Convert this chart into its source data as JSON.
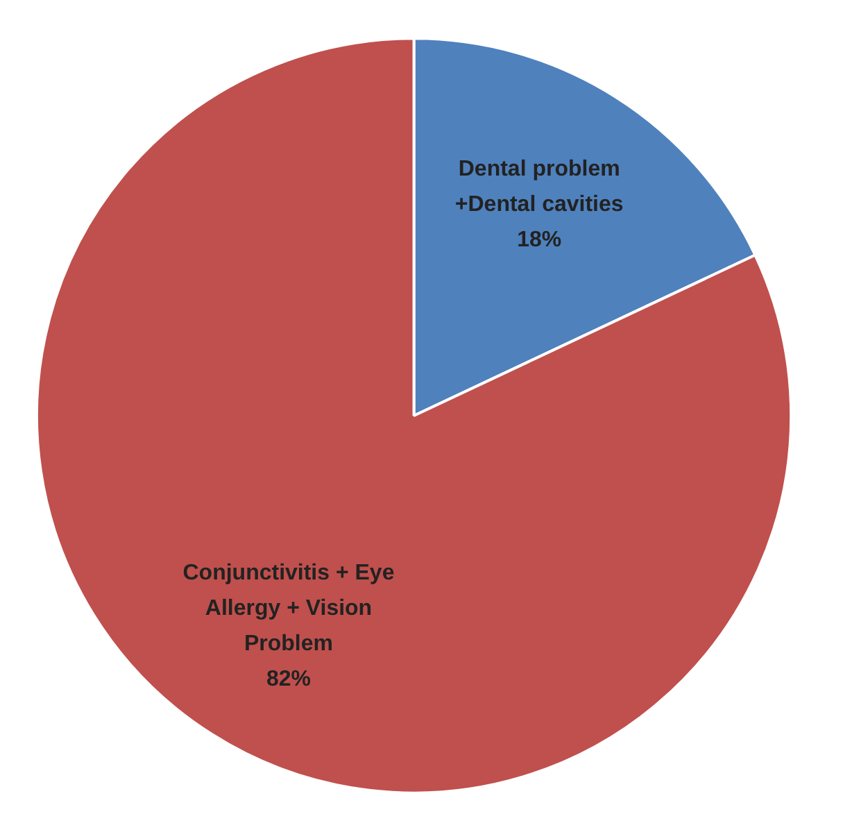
{
  "chart_data": {
    "type": "pie",
    "categories": [
      "Dental problem\n+Dental cavities",
      "Conjunctivitis + Eye\nAllergy + Vision\nProblem"
    ],
    "values": [
      18,
      82
    ],
    "colors": [
      "#4f81bd",
      "#c0504d"
    ],
    "value_labels": [
      "18%",
      "82%"
    ]
  }
}
